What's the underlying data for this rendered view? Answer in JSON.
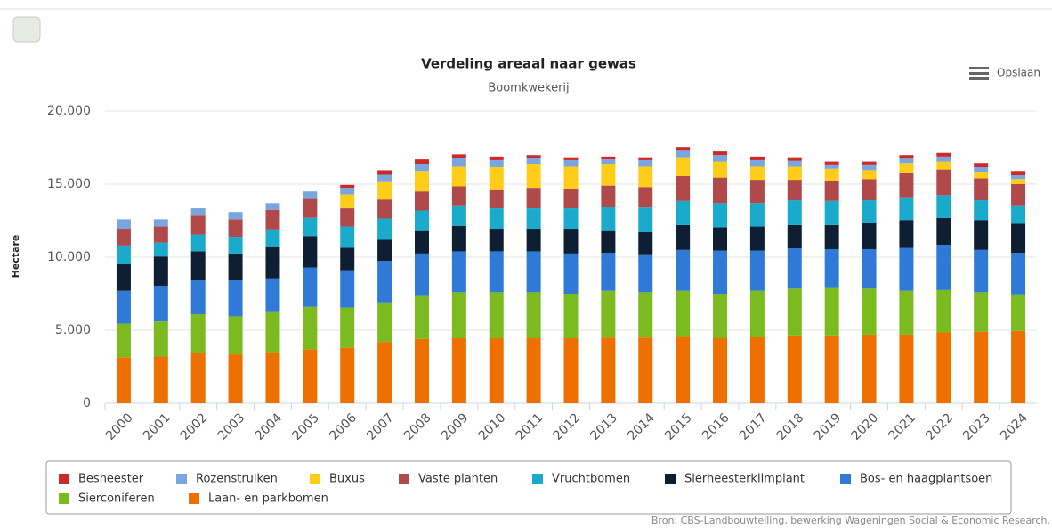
{
  "chart_data": {
    "type": "stacked_bar",
    "title": "Verdeling areaal naar gewas",
    "subtitle": "Boomkwekerij",
    "y_label": "Hectare",
    "menu_label": "Opslaan",
    "source": "Bron: CBS-Landbouwtelling, bewerking Wageningen Social & Economic Research.",
    "categories": [
      "2000",
      "2001",
      "2002",
      "2003",
      "2004",
      "2005",
      "2006",
      "2007",
      "2008",
      "2009",
      "2010",
      "2011",
      "2012",
      "2013",
      "2014",
      "2015",
      "2016",
      "2017",
      "2018",
      "2019",
      "2020",
      "2021",
      "2022",
      "2023",
      "2024"
    ],
    "series": [
      {
        "name": "Besheester",
        "color": "#cc2a2a",
        "values": [
          0,
          0,
          0,
          0,
          0,
          0,
          200,
          250,
          300,
          250,
          250,
          200,
          200,
          200,
          200,
          250,
          250,
          250,
          250,
          200,
          200,
          250,
          250,
          250,
          250
        ]
      },
      {
        "name": "Rozenstruiken",
        "color": "#7aa6e0",
        "values": [
          650,
          500,
          500,
          500,
          450,
          450,
          450,
          500,
          500,
          550,
          450,
          400,
          400,
          300,
          400,
          450,
          450,
          400,
          350,
          300,
          400,
          300,
          350,
          350,
          300
        ]
      },
      {
        "name": "Buxus",
        "color": "#ffcc1a",
        "values": [
          0,
          0,
          0,
          0,
          0,
          0,
          950,
          1250,
          1400,
          1400,
          1550,
          1650,
          1550,
          1500,
          1450,
          1300,
          1100,
          950,
          950,
          800,
          600,
          650,
          550,
          450,
          350
        ]
      },
      {
        "name": "Vaste planten",
        "color": "#b04a4a",
        "values": [
          1150,
          1100,
          1300,
          1200,
          1350,
          1350,
          1250,
          1300,
          1300,
          1300,
          1300,
          1400,
          1350,
          1450,
          1400,
          1700,
          1750,
          1600,
          1400,
          1400,
          1450,
          1700,
          1750,
          1500,
          1450
        ]
      },
      {
        "name": "Vruchtbomen",
        "color": "#1aabcc",
        "values": [
          1250,
          950,
          1150,
          1150,
          1150,
          1250,
          1400,
          1400,
          1350,
          1400,
          1400,
          1400,
          1400,
          1600,
          1650,
          1650,
          1650,
          1600,
          1700,
          1650,
          1550,
          1550,
          1550,
          1350,
          1250
        ]
      },
      {
        "name": "Sierheesterklimplant",
        "color": "#0e1e33",
        "values": [
          1850,
          2000,
          2000,
          1850,
          2200,
          2150,
          1600,
          1500,
          1600,
          1750,
          1550,
          1550,
          1700,
          1550,
          1550,
          1700,
          1600,
          1650,
          1550,
          1650,
          1800,
          1850,
          1850,
          2050,
          2000
        ]
      },
      {
        "name": "Bos- en haagplantsoen",
        "color": "#2f7ad6",
        "values": [
          2250,
          2450,
          2300,
          2450,
          2250,
          2700,
          2550,
          2850,
          2850,
          2800,
          2800,
          2800,
          2750,
          2600,
          2600,
          2800,
          2950,
          2750,
          2800,
          2600,
          2700,
          3000,
          3100,
          2900,
          2850
        ]
      },
      {
        "name": "Sierconiferen",
        "color": "#7bbb1f",
        "values": [
          2300,
          2400,
          2650,
          2600,
          2800,
          2900,
          2750,
          2700,
          3000,
          3150,
          3150,
          3150,
          3050,
          3200,
          3100,
          3100,
          3050,
          3150,
          3200,
          3300,
          3150,
          3000,
          2900,
          2700,
          2500
        ]
      },
      {
        "name": "Laan- en parkbomen",
        "color": "#ee7000",
        "values": [
          3150,
          3200,
          3450,
          3350,
          3500,
          3700,
          3800,
          4200,
          4400,
          4450,
          4450,
          4450,
          4450,
          4500,
          4500,
          4600,
          4450,
          4550,
          4650,
          4650,
          4700,
          4700,
          4850,
          4900,
          4950
        ]
      }
    ],
    "ylim": [
      0,
      20000
    ],
    "yticks": [
      0,
      {
        "value": 5000,
        "label": "5.000"
      },
      {
        "value": 10000,
        "label": "10.000"
      },
      {
        "value": 15000,
        "label": "15.000"
      },
      {
        "value": 20000,
        "label": "20.000"
      }
    ],
    "grid": true,
    "legend": "bottom"
  }
}
